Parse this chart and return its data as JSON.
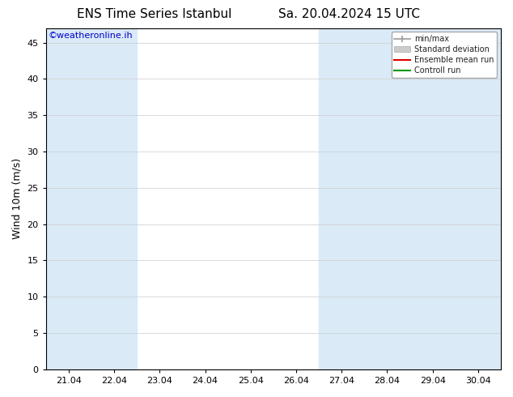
{
  "title": "ENS Time Series Istanbul",
  "title2": "Sa. 20.04.2024 15 UTC",
  "ylabel": "Wind 10m (m/s)",
  "watermark": "©weatheronline.ih",
  "watermark_color": "#0000cc",
  "ylim": [
    0,
    47
  ],
  "yticks": [
    0,
    5,
    10,
    15,
    20,
    25,
    30,
    35,
    40,
    45
  ],
  "xtick_labels": [
    "21.04",
    "22.04",
    "23.04",
    "24.04",
    "25.04",
    "26.04",
    "27.04",
    "28.04",
    "29.04",
    "30.04"
  ],
  "shaded_indices": [
    0,
    1,
    6,
    7,
    8,
    9
  ],
  "shaded_color": "#daeaf7",
  "background_color": "#ffffff",
  "legend_entries": [
    "min/max",
    "Standard deviation",
    "Ensemble mean run",
    "Controll run"
  ],
  "legend_colors_line": [
    "#999999",
    "#cccccc",
    "#dd0000",
    "#009900"
  ],
  "title_fontsize": 11,
  "tick_fontsize": 8,
  "ylabel_fontsize": 9,
  "grid_color": "#cccccc"
}
